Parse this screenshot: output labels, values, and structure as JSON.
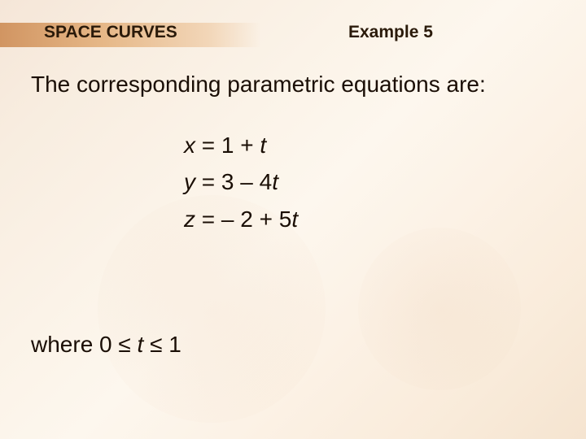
{
  "header": {
    "section_title": "SPACE CURVES",
    "example_label": "Example 5"
  },
  "body": {
    "intro_text": "The corresponding parametric equations are:"
  },
  "equations": {
    "eq1_lhs": "x",
    "eq1_rhs": " = 1 + ",
    "eq1_var2": "t",
    "eq2_lhs": "y",
    "eq2_rhs": " = 3 – 4",
    "eq2_var2": "t",
    "eq3_lhs": "z",
    "eq3_rhs": " = – 2 + 5",
    "eq3_var2": "t"
  },
  "condition": {
    "prefix": "where 0 ≤ ",
    "var": "t",
    "suffix": " ≤ 1"
  },
  "colors": {
    "text_color": "#1a0e05",
    "header_band_start": "#d19562",
    "header_band_end": "#f2d6b8",
    "background_light": "#fdf7ee",
    "background_warm": "#f5e4d0"
  }
}
